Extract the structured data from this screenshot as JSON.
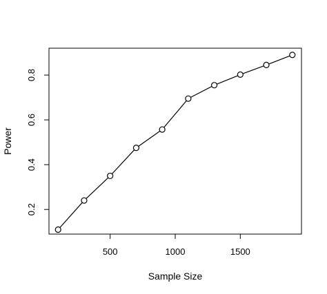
{
  "chart_data": {
    "type": "line",
    "title": "",
    "xlabel": "Sample Size",
    "ylabel": "Power",
    "xlim": [
      30,
      1970
    ],
    "ylim": [
      0.09,
      0.92
    ],
    "xticks": [
      500,
      1000,
      1500
    ],
    "yticks": [
      0.2,
      0.4,
      0.6,
      0.8
    ],
    "xtick_labels": [
      "500",
      "1000",
      "1500"
    ],
    "ytick_labels": [
      "0.2",
      "0.4",
      "0.6",
      "0.8"
    ],
    "grid": false,
    "marker": "open-circle",
    "x": [
      100,
      300,
      500,
      700,
      900,
      1100,
      1300,
      1500,
      1700,
      1900
    ],
    "y": [
      0.11,
      0.24,
      0.35,
      0.475,
      0.557,
      0.695,
      0.755,
      0.802,
      0.845,
      0.89
    ]
  }
}
